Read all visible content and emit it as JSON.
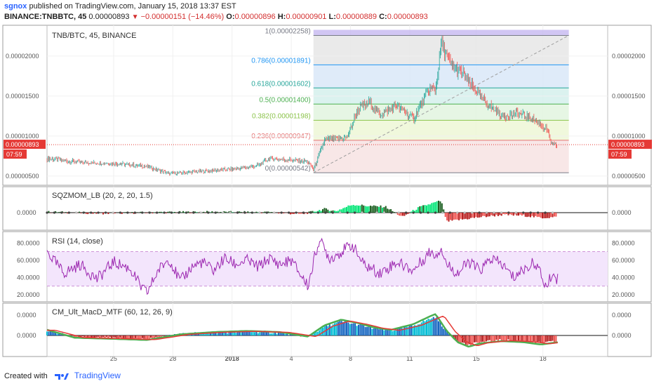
{
  "header": {
    "user": "sgnox",
    "published_text": "published on TradingView.com, January 15, 2018 13:37 EST",
    "symbol": "BINANCE:TNBBTC, 45",
    "last": "0.00000893",
    "arrow": "▼",
    "change": "−0.00000151 (−14.46%)",
    "o_label": "O:",
    "o": "0.00000896",
    "h_label": "H:",
    "h": "0.00000901",
    "l_label": "L:",
    "l": "0.00000889",
    "c_label": "C:",
    "c": "0.00000893"
  },
  "footer": {
    "created_with": "Created with",
    "brand": "TradingView"
  },
  "colors": {
    "up": "#26a69a",
    "down": "#ef5350",
    "rsi": "#9c27b0",
    "price_line": "#e53935"
  },
  "chart_data": [
    {
      "type": "candlestick",
      "title": "TNB/BTC, 45, BINANCE",
      "last_price_label": "0.00000893",
      "countdown": "07:59",
      "ylim": [
        4.2e-06,
        2.35e-05
      ],
      "y_ticks": [
        "0.00000500",
        "0.00001000",
        "0.00001500",
        "0.00002000"
      ],
      "x_ticks": [
        "25",
        "28",
        "2018",
        "4",
        "8",
        "11",
        "15",
        "18"
      ],
      "price_path": [
        [
          0,
          7.2e-06
        ],
        [
          6,
          6.7e-06
        ],
        [
          12,
          6.6e-06
        ],
        [
          18,
          6.2e-06
        ],
        [
          22,
          5.3e-06
        ],
        [
          28,
          5.6e-06
        ],
        [
          34,
          5.9e-06
        ],
        [
          38,
          6.3e-06
        ],
        [
          40,
          7.2e-06
        ],
        [
          44,
          7e-06
        ],
        [
          47,
          6.8e-06
        ],
        [
          48,
          5.8e-06
        ],
        [
          50,
          9.5e-06
        ],
        [
          54,
          9.8e-06
        ],
        [
          56,
          1.33e-05
        ],
        [
          58,
          1.42e-05
        ],
        [
          60,
          1.27e-05
        ],
        [
          63,
          1.38e-05
        ],
        [
          66,
          1.22e-05
        ],
        [
          69,
          1.6e-05
        ],
        [
          70,
          1.58e-05
        ],
        [
          71,
          2.15e-05
        ],
        [
          72,
          2e-05
        ],
        [
          73,
          1.87e-05
        ],
        [
          75,
          1.77e-05
        ],
        [
          77,
          1.58e-05
        ],
        [
          79,
          1.42e-05
        ],
        [
          82,
          1.25e-05
        ],
        [
          85,
          1.28e-05
        ],
        [
          88,
          1.2e-05
        ],
        [
          90,
          1.08e-05
        ],
        [
          91,
          8.8e-06
        ],
        [
          92,
          8.9e-06
        ]
      ],
      "fib_levels": [
        {
          "ratio": "1",
          "value": 2.258e-05,
          "label": "1(0.00002258)",
          "color": "#787b86"
        },
        {
          "ratio": "0.786",
          "value": 1.891e-05,
          "label": "0.786(0.00001891)",
          "color": "#2196f3"
        },
        {
          "ratio": "0.618",
          "value": 1.602e-05,
          "label": "0.618(0.00001602)",
          "color": "#26a69a"
        },
        {
          "ratio": "0.5",
          "value": 1.4e-05,
          "label": "0.5(0.00001400)",
          "color": "#4caf50"
        },
        {
          "ratio": "0.382",
          "value": 1.198e-05,
          "label": "0.382(0.00001198)",
          "color": "#8bc34a"
        },
        {
          "ratio": "0.236",
          "value": 9.47e-06,
          "label": "0.236(0.00000947)",
          "color": "#e57373"
        },
        {
          "ratio": "0",
          "value": 5.42e-06,
          "label": "0(0.00000542)",
          "color": "#787b86"
        }
      ]
    },
    {
      "type": "histogram",
      "title": "SQZMOM_LB (20, 2, 20, 1.5)",
      "y_ticks": [
        "0.0000"
      ],
      "ylim": [
        -1,
        1
      ],
      "values_path": [
        [
          0,
          0.05
        ],
        [
          10,
          -0.05
        ],
        [
          20,
          0.02
        ],
        [
          30,
          0.05
        ],
        [
          40,
          0.02
        ],
        [
          46,
          -0.1
        ],
        [
          50,
          0.25
        ],
        [
          52,
          0.1
        ],
        [
          55,
          0.55
        ],
        [
          58,
          0.45
        ],
        [
          61,
          0.4
        ],
        [
          64,
          -0.3
        ],
        [
          67,
          0.35
        ],
        [
          70,
          0.7
        ],
        [
          71,
          0.8
        ],
        [
          72,
          -0.6
        ],
        [
          75,
          -0.45
        ],
        [
          78,
          -0.3
        ],
        [
          82,
          -0.15
        ],
        [
          86,
          -0.2
        ],
        [
          89,
          -0.35
        ],
        [
          92,
          -0.3
        ]
      ]
    },
    {
      "type": "line",
      "title": "RSI (14, close)",
      "y_ticks": [
        "20.0000",
        "40.0000",
        "60.0000",
        "80.0000"
      ],
      "ylim": [
        15,
        90
      ],
      "band": [
        30,
        70
      ],
      "values_path": [
        [
          0,
          70
        ],
        [
          3,
          45
        ],
        [
          6,
          55
        ],
        [
          9,
          38
        ],
        [
          12,
          58
        ],
        [
          15,
          50
        ],
        [
          17,
          28
        ],
        [
          18,
          22
        ],
        [
          20,
          48
        ],
        [
          22,
          62
        ],
        [
          24,
          35
        ],
        [
          26,
          52
        ],
        [
          28,
          58
        ],
        [
          30,
          48
        ],
        [
          32,
          62
        ],
        [
          34,
          55
        ],
        [
          36,
          60
        ],
        [
          38,
          52
        ],
        [
          40,
          62
        ],
        [
          42,
          55
        ],
        [
          44,
          60
        ],
        [
          46,
          40
        ],
        [
          47,
          30
        ],
        [
          49,
          84
        ],
        [
          51,
          62
        ],
        [
          53,
          70
        ],
        [
          55,
          78
        ],
        [
          57,
          55
        ],
        [
          60,
          45
        ],
        [
          63,
          58
        ],
        [
          66,
          48
        ],
        [
          69,
          70
        ],
        [
          70,
          66
        ],
        [
          71,
          75
        ],
        [
          72,
          55
        ],
        [
          74,
          45
        ],
        [
          76,
          58
        ],
        [
          78,
          48
        ],
        [
          80,
          62
        ],
        [
          82,
          55
        ],
        [
          84,
          40
        ],
        [
          86,
          50
        ],
        [
          88,
          58
        ],
        [
          89,
          42
        ],
        [
          90,
          28
        ],
        [
          91,
          45
        ],
        [
          92,
          38
        ]
      ]
    },
    {
      "type": "histogram",
      "title": "CM_Ult_MacD_MTF (60, 12, 26, 9)",
      "y_ticks": [
        "0.0000",
        "0.0000"
      ],
      "ylim": [
        -1,
        1
      ],
      "values_path": [
        [
          0,
          0.25
        ],
        [
          5,
          -0.1
        ],
        [
          12,
          -0.15
        ],
        [
          18,
          -0.2
        ],
        [
          24,
          0.05
        ],
        [
          30,
          0.15
        ],
        [
          36,
          0.2
        ],
        [
          42,
          0.15
        ],
        [
          47,
          -0.05
        ],
        [
          50,
          0.45
        ],
        [
          53,
          0.7
        ],
        [
          56,
          0.55
        ],
        [
          59,
          0.35
        ],
        [
          62,
          0.25
        ],
        [
          66,
          0.5
        ],
        [
          69,
          0.85
        ],
        [
          70,
          0.95
        ],
        [
          72,
          0.2
        ],
        [
          74,
          -0.3
        ],
        [
          76,
          -0.5
        ],
        [
          78,
          -0.35
        ],
        [
          82,
          -0.25
        ],
        [
          86,
          -0.3
        ],
        [
          89,
          -0.4
        ],
        [
          92,
          -0.3
        ]
      ]
    }
  ]
}
